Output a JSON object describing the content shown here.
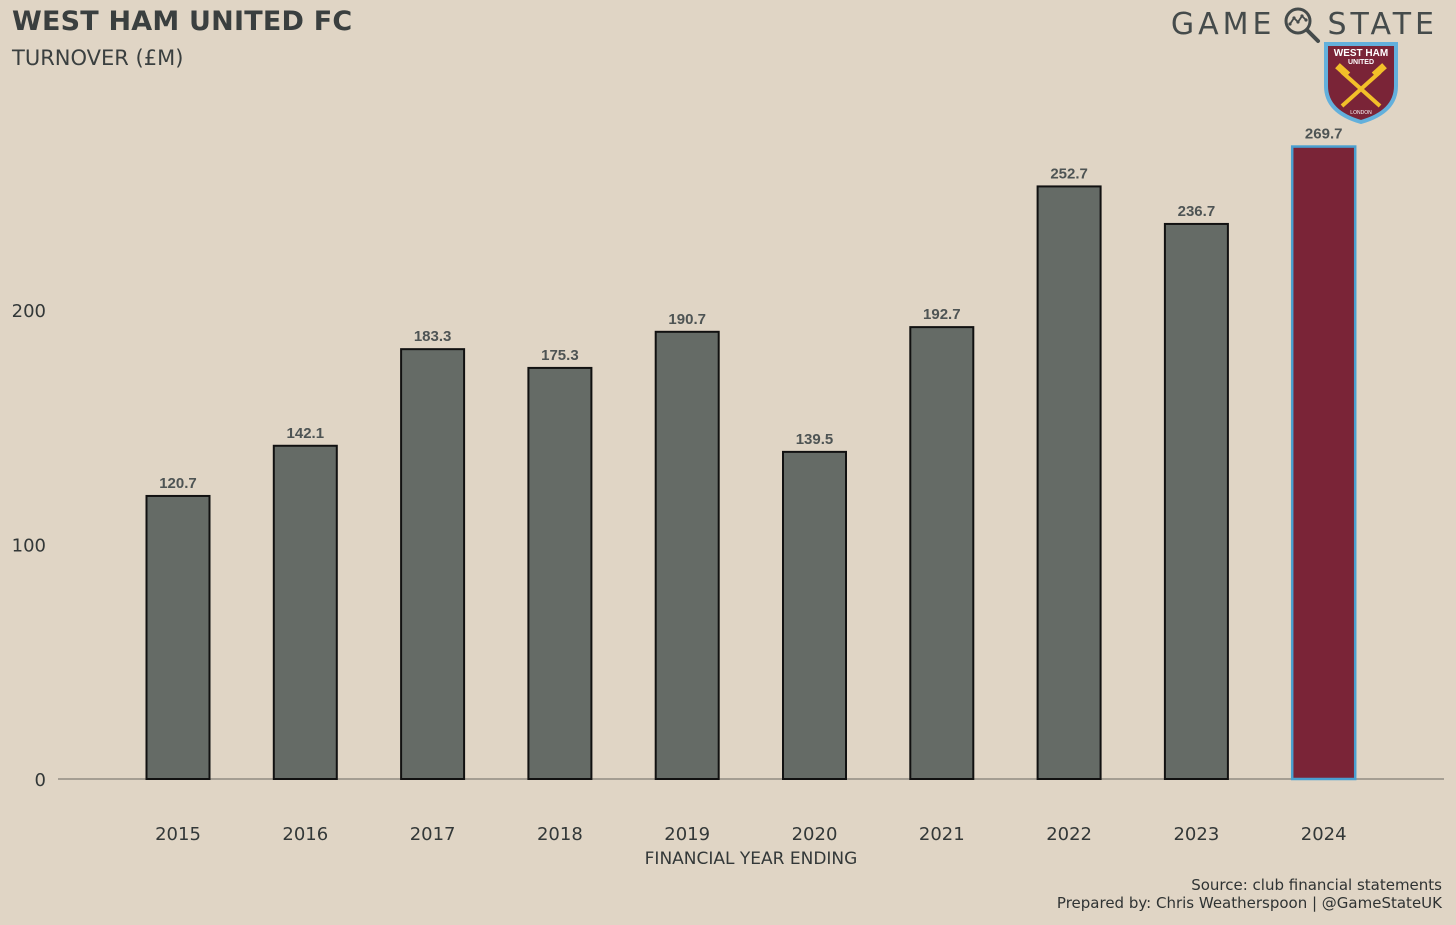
{
  "header": {
    "title": "WEST HAM UNITED FC",
    "subtitle": "TURNOVER (£M)",
    "brand_left": "GAME",
    "brand_right": "STATE",
    "brand_icon": "magnifier-icon",
    "crest_icon": "west-ham-crest-icon",
    "crest_top_text": "WEST HAM",
    "crest_mid_text": "UNITED",
    "crest_bottom_text": "LONDON"
  },
  "footer": {
    "source": "Source: club financial statements",
    "prepared": "Prepared by: Chris Weatherspoon | @GameStateUK"
  },
  "colors": {
    "background": "#e0d5c5",
    "bar": "#656b66",
    "highlight": "#7a2437",
    "highlight_border": "#4a9fd0",
    "baseline": "#a59e93"
  },
  "chart_data": {
    "type": "bar",
    "title": "WEST HAM UNITED FC",
    "subtitle": "TURNOVER (£M)",
    "xlabel": "FINANCIAL YEAR ENDING",
    "ylabel": "",
    "categories": [
      "2015",
      "2016",
      "2017",
      "2018",
      "2019",
      "2020",
      "2021",
      "2022",
      "2023",
      "2024"
    ],
    "values": [
      120.7,
      142.1,
      183.3,
      175.3,
      190.7,
      139.5,
      192.7,
      252.7,
      236.7,
      269.7
    ],
    "value_labels": [
      "120.7",
      "142.1",
      "183.3",
      "175.3",
      "190.7",
      "139.5",
      "192.7",
      "252.7",
      "236.7",
      "269.7"
    ],
    "highlight_category": "2024",
    "yticks": [
      0,
      100,
      200
    ],
    "ylim": [
      0,
      290
    ],
    "grid": false,
    "legend": "none"
  }
}
